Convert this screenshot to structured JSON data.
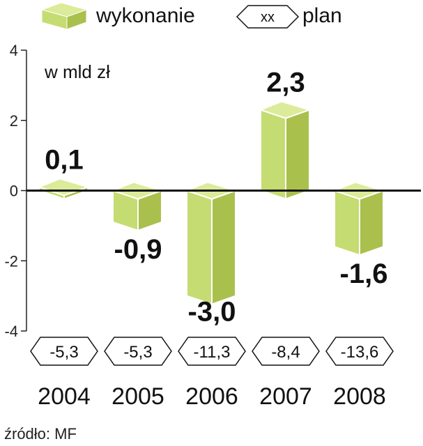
{
  "legend": {
    "actual_label": "wykonanie",
    "plan_symbol": "xx",
    "plan_label": "plan"
  },
  "unit_label": "w mld zł",
  "source": "źródło: MF",
  "colors": {
    "bar_front": "#c5dc72",
    "bar_side": "#a9c04d",
    "bar_top": "#dbeb99",
    "outline": "#ffffff",
    "zero_line": "#111111",
    "axis": "#222222"
  },
  "chart_data": {
    "type": "bar",
    "categories": [
      "2004",
      "2005",
      "2006",
      "2007",
      "2008"
    ],
    "value_labels": [
      "0,1",
      "-0,9",
      "-3,0",
      "2,3",
      "-1,6"
    ],
    "plan_labels": [
      "-5,3",
      "-5,3",
      "-11,3",
      "-8,4",
      "-13,6"
    ],
    "series": [
      {
        "name": "wykonanie",
        "values": [
          0.1,
          -0.9,
          -3.0,
          2.3,
          -1.6
        ]
      },
      {
        "name": "plan",
        "values": [
          -5.3,
          -5.3,
          -11.3,
          -8.4,
          -13.6
        ]
      }
    ],
    "yticks": [
      4,
      2,
      0,
      -2,
      -4
    ],
    "ytick_labels": [
      "4",
      "2",
      "0",
      "-2",
      "-4"
    ],
    "ylim": [
      -4,
      4
    ],
    "legend_position": "top",
    "grid": false
  }
}
